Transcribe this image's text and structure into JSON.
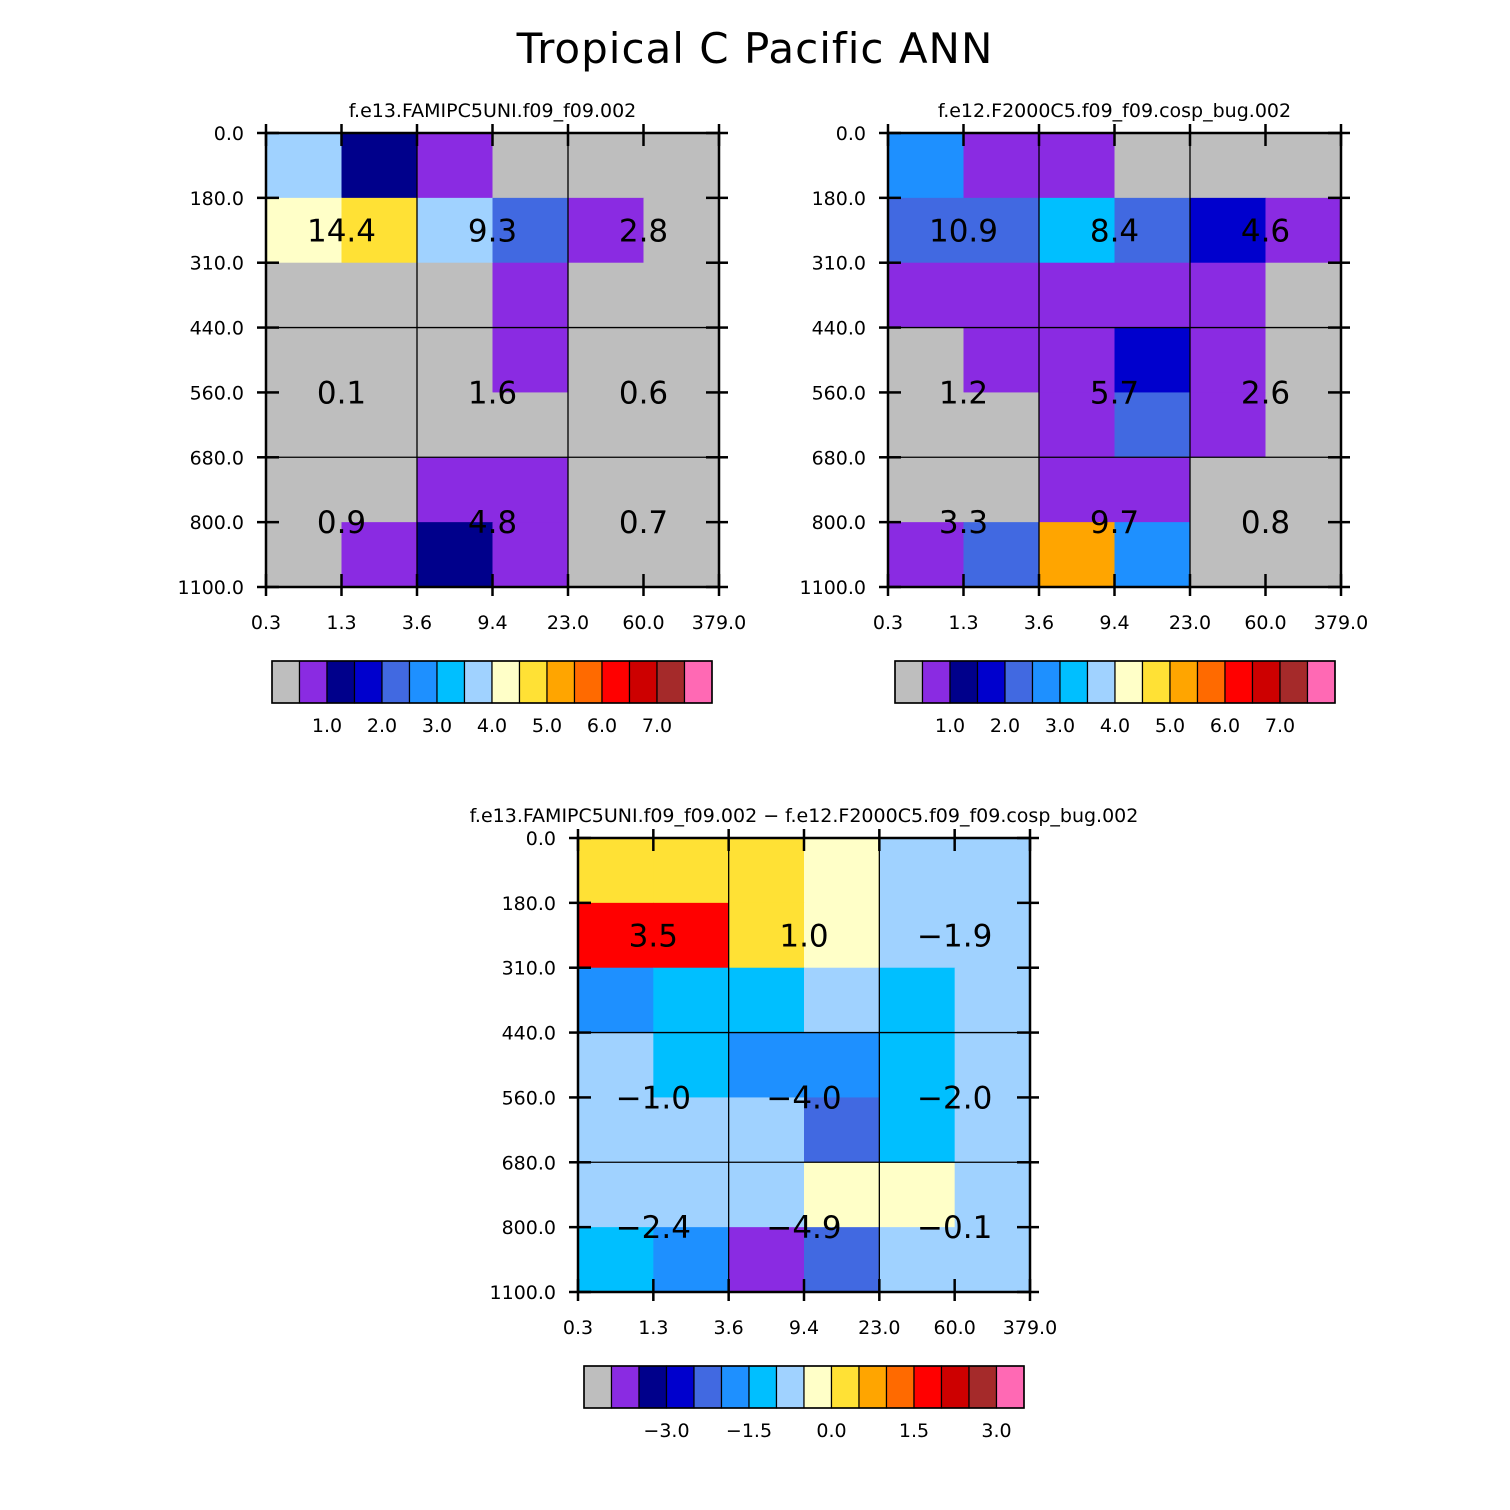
{
  "title": "Tropical C Pacific ANN",
  "colors": {
    "missing": "#BEBEBE",
    "abs_palette": [
      "#BEBEBE",
      "#8A2BE2",
      "#00008B",
      "#0000CD",
      "#4169E1",
      "#1E90FF",
      "#00BFFF",
      "#A0D2FF",
      "#FFFFC8",
      "#FFE135",
      "#FFA500",
      "#FF6A00",
      "#FF0000",
      "#CD0000",
      "#A52A2A",
      "#FF69B4"
    ],
    "diff_palette": [
      "#BEBEBE",
      "#8A2BE2",
      "#00008B",
      "#0000CD",
      "#4169E1",
      "#1E90FF",
      "#00BFFF",
      "#A0D2FF",
      "#FFFFC8",
      "#FFE135",
      "#FFA500",
      "#FF6A00",
      "#FF0000",
      "#CD0000",
      "#A52A2A",
      "#FF69B4"
    ]
  },
  "chart_data": [
    {
      "type": "heatmap",
      "title": "f.e13.FAMIPC5UNI.f09_f09.002",
      "x_ticks": [
        "0.3",
        "1.3",
        "3.6",
        "9.4",
        "23.0",
        "60.0",
        "379.0"
      ],
      "y_ticks": [
        "0.0",
        "180.0",
        "310.0",
        "440.0",
        "560.0",
        "680.0",
        "800.0",
        "1100.0"
      ],
      "cells": [
        [
          7,
          2,
          1,
          0,
          0,
          0
        ],
        [
          8,
          9,
          7,
          4,
          1,
          0
        ],
        [
          0,
          0,
          0,
          1,
          0,
          0
        ],
        [
          0,
          0,
          0,
          1,
          0,
          0
        ],
        [
          0,
          0,
          0,
          0,
          0,
          0
        ],
        [
          0,
          0,
          1,
          1,
          0,
          0
        ],
        [
          0,
          1,
          2,
          1,
          0,
          0
        ]
      ],
      "box_values": [
        [
          "14.4",
          "9.3",
          "2.8"
        ],
        [
          "0.1",
          "1.6",
          "0.6"
        ],
        [
          "0.9",
          "4.8",
          "0.7"
        ]
      ],
      "colorbar_labels": [
        "1.0",
        "2.0",
        "3.0",
        "4.0",
        "5.0",
        "6.0",
        "7.0"
      ]
    },
    {
      "type": "heatmap",
      "title": "f.e12.F2000C5.f09_f09.cosp_bug.002",
      "x_ticks": [
        "0.3",
        "1.3",
        "3.6",
        "9.4",
        "23.0",
        "60.0",
        "379.0"
      ],
      "y_ticks": [
        "0.0",
        "180.0",
        "310.0",
        "440.0",
        "560.0",
        "680.0",
        "800.0",
        "1100.0"
      ],
      "cells": [
        [
          5,
          1,
          1,
          0,
          0,
          0
        ],
        [
          4,
          4,
          6,
          4,
          3,
          1
        ],
        [
          1,
          1,
          1,
          1,
          1,
          0
        ],
        [
          0,
          1,
          1,
          3,
          1,
          0
        ],
        [
          0,
          0,
          1,
          4,
          1,
          0
        ],
        [
          0,
          0,
          1,
          1,
          0,
          0
        ],
        [
          1,
          4,
          10,
          5,
          0,
          0
        ]
      ],
      "box_values": [
        [
          "10.9",
          "8.4",
          "4.6"
        ],
        [
          "1.2",
          "5.7",
          "2.6"
        ],
        [
          "3.3",
          "9.7",
          "0.8"
        ]
      ],
      "colorbar_labels": [
        "1.0",
        "2.0",
        "3.0",
        "4.0",
        "5.0",
        "6.0",
        "7.0"
      ]
    },
    {
      "type": "heatmap",
      "title": "f.e13.FAMIPC5UNI.f09_f09.002 - f.e12.F2000C5.f09_f09.cosp_bug.002",
      "x_ticks": [
        "0.3",
        "1.3",
        "3.6",
        "9.4",
        "23.0",
        "60.0",
        "379.0"
      ],
      "y_ticks": [
        "0.0",
        "180.0",
        "310.0",
        "440.0",
        "560.0",
        "680.0",
        "800.0",
        "1100.0"
      ],
      "cells": [
        [
          9,
          9,
          9,
          8,
          7,
          7
        ],
        [
          12,
          12,
          9,
          8,
          7,
          7
        ],
        [
          5,
          6,
          6,
          7,
          6,
          7
        ],
        [
          7,
          6,
          5,
          5,
          6,
          7
        ],
        [
          7,
          7,
          7,
          4,
          6,
          7
        ],
        [
          7,
          7,
          7,
          8,
          8,
          7
        ],
        [
          6,
          5,
          1,
          4,
          7,
          7
        ]
      ],
      "box_values": [
        [
          "3.5",
          "1.0",
          "-1.9"
        ],
        [
          "-1.0",
          "-4.0",
          "-2.0"
        ],
        [
          "-2.4",
          "-4.9",
          "-0.1"
        ]
      ],
      "colorbar_labels": [
        "-3.0",
        "-1.5",
        "0.0",
        "1.5",
        "3.0"
      ]
    }
  ]
}
